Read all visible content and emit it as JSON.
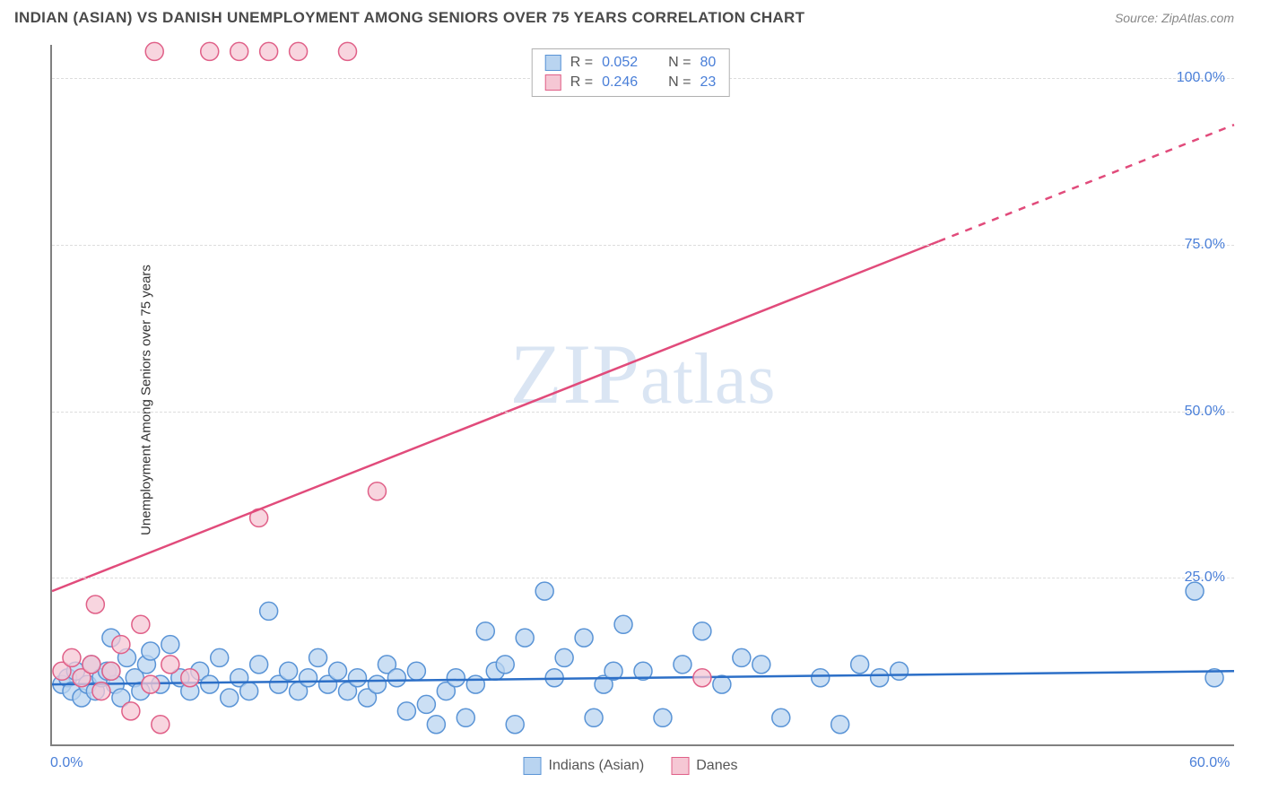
{
  "title": "INDIAN (ASIAN) VS DANISH UNEMPLOYMENT AMONG SENIORS OVER 75 YEARS CORRELATION CHART",
  "source": "Source: ZipAtlas.com",
  "ylabel": "Unemployment Among Seniors over 75 years",
  "watermark": "ZIPatlas",
  "chart": {
    "type": "scatter",
    "xlim": [
      0,
      60
    ],
    "ylim": [
      0,
      105
    ],
    "x_ticks": [
      {
        "value": 0,
        "label": "0.0%"
      },
      {
        "value": 60,
        "label": "60.0%"
      }
    ],
    "y_ticks": [
      {
        "value": 25,
        "label": "25.0%"
      },
      {
        "value": 50,
        "label": "50.0%"
      },
      {
        "value": 75,
        "label": "75.0%"
      },
      {
        "value": 100,
        "label": "100.0%"
      }
    ],
    "grid_color": "#dddddd",
    "background": "#ffffff",
    "axis_color": "#808080",
    "series": [
      {
        "name": "Indians (Asian)",
        "marker_fill": "#b9d4f0",
        "marker_stroke": "#5a94d6",
        "marker_opacity": 0.75,
        "marker_radius": 10,
        "line_color": "#2c6fc7",
        "line_width": 2.5,
        "R": "0.052",
        "N": "80",
        "trend": {
          "x1": 0,
          "y1": 9,
          "x2": 60,
          "y2": 11,
          "dash_from_x": 60
        },
        "points": [
          [
            0.5,
            9
          ],
          [
            0.8,
            10
          ],
          [
            1,
            8
          ],
          [
            1.2,
            11
          ],
          [
            1.5,
            7
          ],
          [
            1.8,
            9
          ],
          [
            2,
            12
          ],
          [
            2.2,
            8
          ],
          [
            2.5,
            10
          ],
          [
            2.8,
            11
          ],
          [
            3,
            16
          ],
          [
            3.2,
            9
          ],
          [
            3.5,
            7
          ],
          [
            3.8,
            13
          ],
          [
            3,
            11
          ],
          [
            4.2,
            10
          ],
          [
            4.5,
            8
          ],
          [
            4.8,
            12
          ],
          [
            5,
            14
          ],
          [
            5.5,
            9
          ],
          [
            6,
            15
          ],
          [
            6.5,
            10
          ],
          [
            7,
            8
          ],
          [
            7.5,
            11
          ],
          [
            8,
            9
          ],
          [
            8.5,
            13
          ],
          [
            9,
            7
          ],
          [
            9.5,
            10
          ],
          [
            10,
            8
          ],
          [
            10.5,
            12
          ],
          [
            11,
            20
          ],
          [
            11.5,
            9
          ],
          [
            12,
            11
          ],
          [
            12.5,
            8
          ],
          [
            13,
            10
          ],
          [
            13.5,
            13
          ],
          [
            14,
            9
          ],
          [
            14.5,
            11
          ],
          [
            15,
            8
          ],
          [
            15.5,
            10
          ],
          [
            16,
            7
          ],
          [
            16.5,
            9
          ],
          [
            17,
            12
          ],
          [
            17.5,
            10
          ],
          [
            18,
            5
          ],
          [
            18.5,
            11
          ],
          [
            19,
            6
          ],
          [
            19.5,
            3
          ],
          [
            20,
            8
          ],
          [
            20.5,
            10
          ],
          [
            21,
            4
          ],
          [
            21.5,
            9
          ],
          [
            22,
            17
          ],
          [
            22.5,
            11
          ],
          [
            23,
            12
          ],
          [
            23.5,
            3
          ],
          [
            24,
            16
          ],
          [
            25,
            23
          ],
          [
            25.5,
            10
          ],
          [
            26,
            13
          ],
          [
            27,
            16
          ],
          [
            27.5,
            4
          ],
          [
            28,
            9
          ],
          [
            28.5,
            11
          ],
          [
            29,
            18
          ],
          [
            30,
            11
          ],
          [
            31,
            4
          ],
          [
            32,
            12
          ],
          [
            33,
            17
          ],
          [
            34,
            9
          ],
          [
            35,
            13
          ],
          [
            36,
            12
          ],
          [
            37,
            4
          ],
          [
            39,
            10
          ],
          [
            40,
            3
          ],
          [
            41,
            12
          ],
          [
            42,
            10
          ],
          [
            43,
            11
          ],
          [
            58,
            23
          ],
          [
            59,
            10
          ]
        ]
      },
      {
        "name": "Danes",
        "marker_fill": "#f5c7d4",
        "marker_stroke": "#e06088",
        "marker_opacity": 0.75,
        "marker_radius": 10,
        "line_color": "#e14b7b",
        "line_width": 2.5,
        "R": "0.246",
        "N": "23",
        "trend": {
          "x1": 0,
          "y1": 23,
          "x2": 60,
          "y2": 93,
          "dash_from_x": 45
        },
        "points": [
          [
            0.5,
            11
          ],
          [
            1,
            13
          ],
          [
            1.5,
            10
          ],
          [
            2,
            12
          ],
          [
            2.2,
            21
          ],
          [
            2.5,
            8
          ],
          [
            3,
            11
          ],
          [
            3.5,
            15
          ],
          [
            4,
            5
          ],
          [
            4.5,
            18
          ],
          [
            5,
            9
          ],
          [
            5.2,
            104
          ],
          [
            5.5,
            3
          ],
          [
            6,
            12
          ],
          [
            7,
            10
          ],
          [
            8,
            104
          ],
          [
            9.5,
            104
          ],
          [
            10.5,
            34
          ],
          [
            11,
            104
          ],
          [
            12.5,
            104
          ],
          [
            15,
            104
          ],
          [
            16.5,
            38
          ],
          [
            33,
            10
          ]
        ]
      }
    ]
  },
  "legend": {
    "r_label": "R =",
    "n_label": "N ="
  },
  "bottom_legend": [
    {
      "label": "Indians (Asian)",
      "fill": "#b9d4f0",
      "stroke": "#5a94d6"
    },
    {
      "label": "Danes",
      "fill": "#f5c7d4",
      "stroke": "#e06088"
    }
  ],
  "colors": {
    "tick_text": "#4a7fd8",
    "bottom_text": "#555555"
  }
}
